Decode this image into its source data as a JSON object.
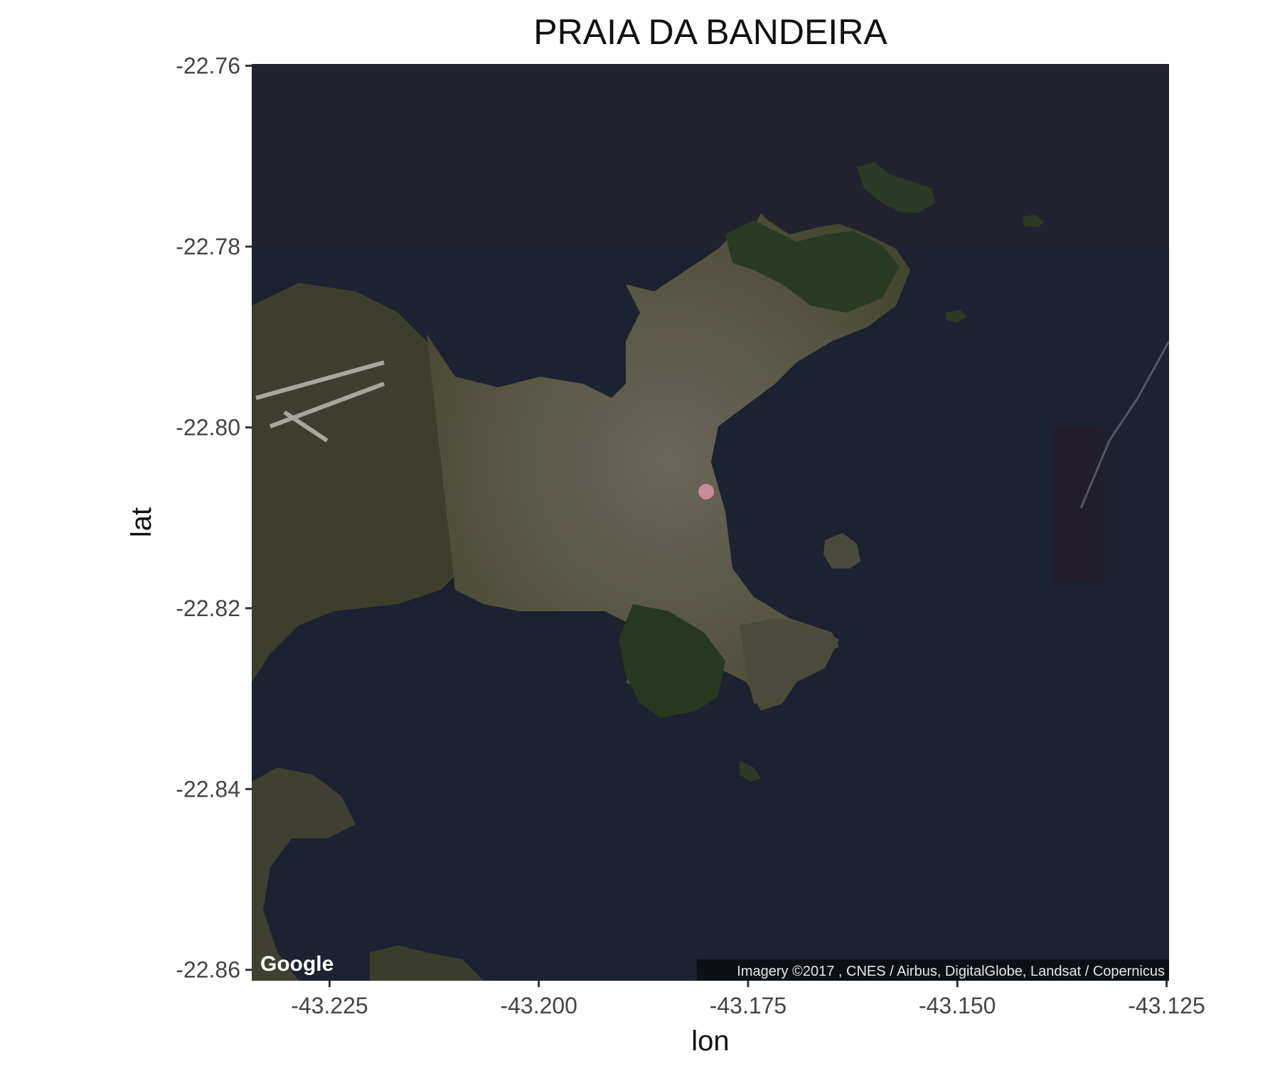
{
  "chart_data": {
    "type": "map",
    "title": "PRAIA DA BANDEIRA",
    "xlabel": "lon",
    "ylabel": "lat",
    "xlim": [
      -43.2343,
      -43.1247
    ],
    "ylim": [
      -22.8612,
      -22.7598
    ],
    "x_ticks": [
      -43.225,
      -43.2,
      -43.175,
      -43.15,
      -43.125
    ],
    "x_tick_labels": [
      "-43.225",
      "-43.200",
      "-43.175",
      "-43.150",
      "-43.125"
    ],
    "y_ticks": [
      -22.76,
      -22.78,
      -22.8,
      -22.82,
      -22.84,
      -22.86
    ],
    "y_tick_labels": [
      "-22.76",
      "-22.78",
      "-22.80",
      "-22.82",
      "-22.84",
      "-22.86"
    ],
    "basemap": "satellite",
    "points": [
      {
        "lon": -43.18,
        "lat": -22.8071,
        "color": "#f2a0b8"
      }
    ],
    "map_credit": "Google",
    "attribution": "Imagery ©2017 , CNES / Airbus, DigitalGlobe, Landsat / Copernicus"
  },
  "colors": {
    "water": "#1c2230",
    "land": "#3a3b2d",
    "urban": "#5e5b4b",
    "vegetation": "#25361f",
    "point": "#f2a0b8"
  }
}
